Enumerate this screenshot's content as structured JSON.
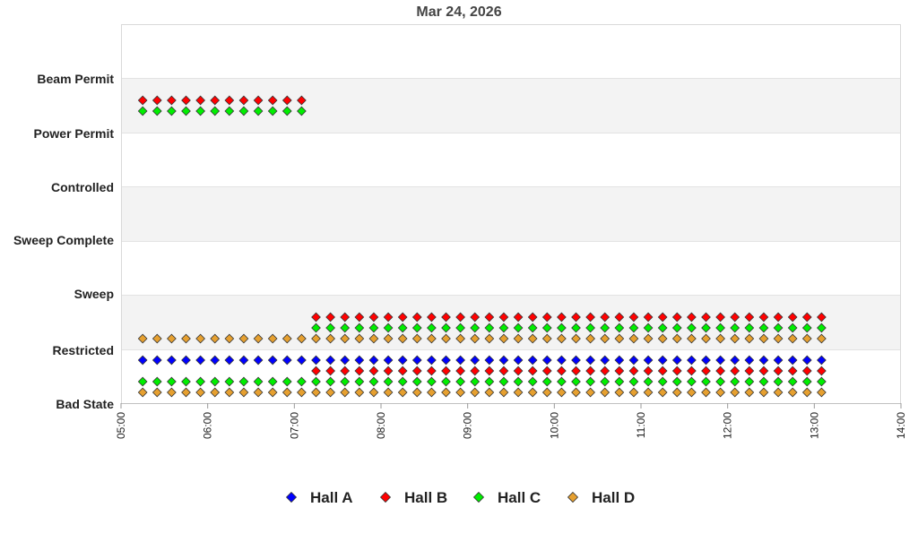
{
  "chart_data": {
    "type": "scatter",
    "title": "Mar 24, 2026",
    "xlabel": "",
    "ylabel": "",
    "x_ticks": [
      "05:00",
      "06:00",
      "07:00",
      "08:00",
      "09:00",
      "10:00",
      "11:00",
      "12:00",
      "13:00",
      "14:00"
    ],
    "xlim": [
      "05:00",
      "14:00"
    ],
    "y_categories": [
      "Bad State",
      "Restricted",
      "Sweep",
      "Sweep Complete",
      "Controlled",
      "Power Permit",
      "Beam Permit"
    ],
    "sample_interval_minutes": 10,
    "grid": "alternating horizontal bands",
    "legend_position": "bottom-center",
    "series": [
      {
        "name": "Hall A",
        "color": "#0000ff",
        "segments": [
          {
            "state": "Bad State",
            "start": "05:15",
            "end": "13:05"
          }
        ]
      },
      {
        "name": "Hall B",
        "color": "#ff0000",
        "segments": [
          {
            "state": "Power Permit",
            "start": "05:15",
            "end": "07:05"
          },
          {
            "state": "Bad State",
            "start": "07:15",
            "end": "13:05"
          },
          {
            "state": "Restricted",
            "start": "07:15",
            "end": "13:05"
          }
        ]
      },
      {
        "name": "Hall C",
        "color": "#00ee00",
        "segments": [
          {
            "state": "Power Permit",
            "start": "05:15",
            "end": "07:05"
          },
          {
            "state": "Bad State",
            "start": "05:15",
            "end": "07:05"
          },
          {
            "state": "Bad State",
            "start": "07:15",
            "end": "13:05"
          },
          {
            "state": "Restricted",
            "start": "07:15",
            "end": "13:05"
          }
        ]
      },
      {
        "name": "Hall D",
        "color": "#e6a030",
        "segments": [
          {
            "state": "Restricted",
            "start": "05:15",
            "end": "13:05"
          },
          {
            "state": "Bad State",
            "start": "05:15",
            "end": "13:05"
          }
        ]
      }
    ]
  }
}
